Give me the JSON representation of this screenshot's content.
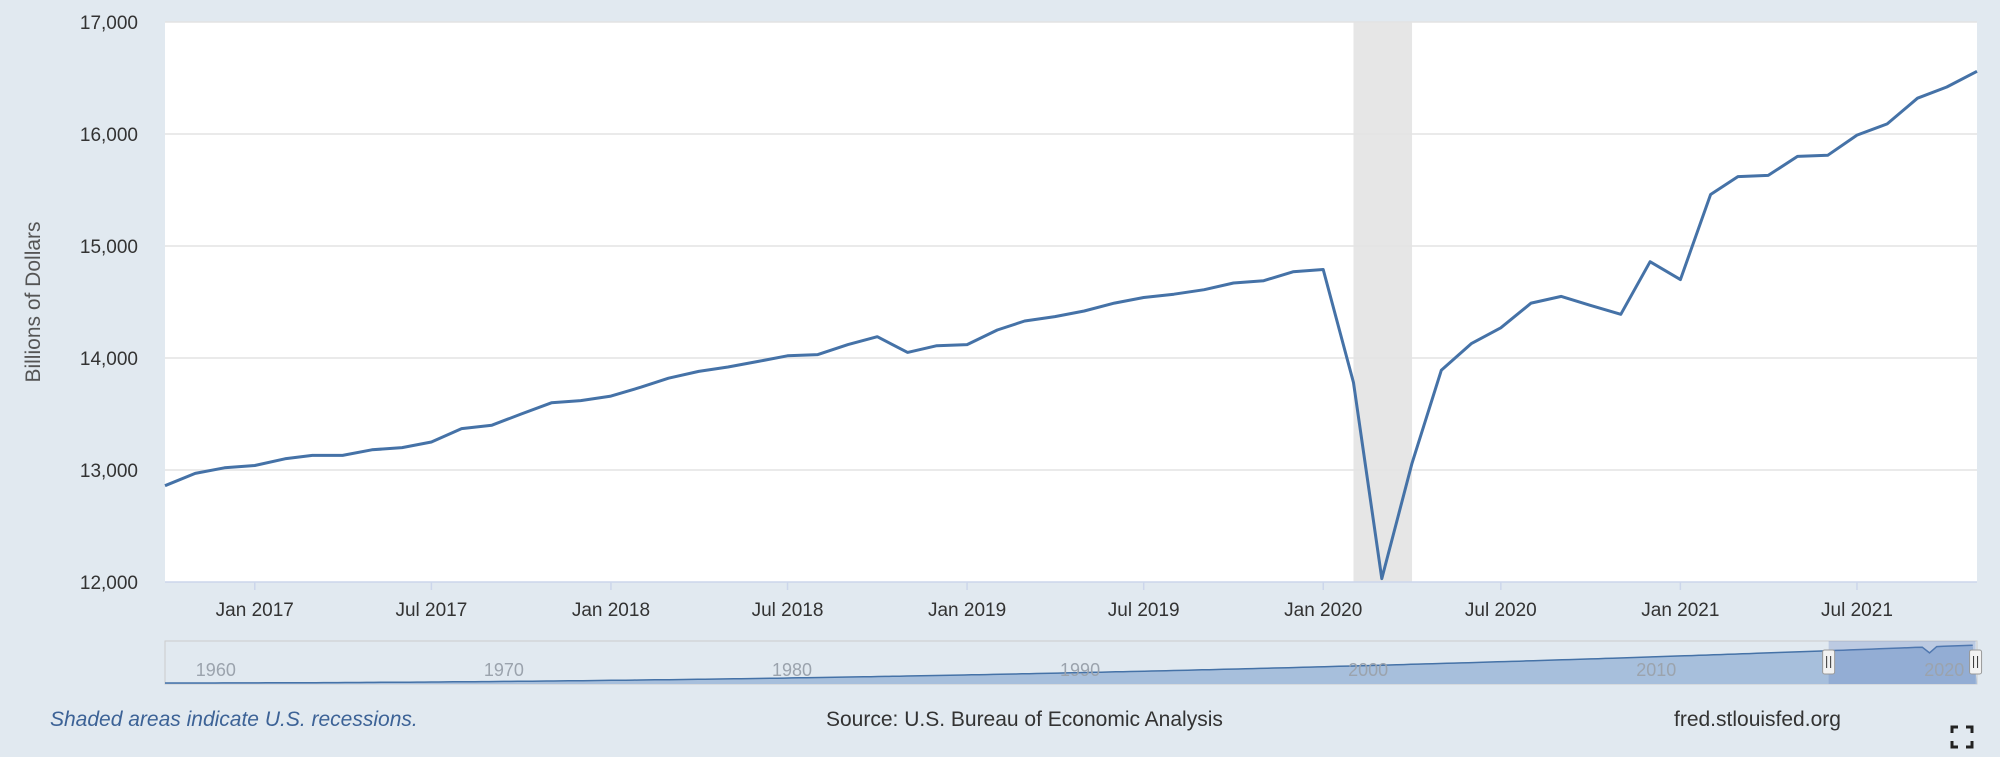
{
  "chart_data": {
    "type": "line",
    "ylabel": "Billions of Dollars",
    "ylim": [
      12000,
      17000
    ],
    "yticks": [
      12000,
      13000,
      14000,
      15000,
      16000,
      17000
    ],
    "ytick_labels": [
      "12,000",
      "13,000",
      "14,000",
      "15,000",
      "16,000",
      "17,000"
    ],
    "xlim": [
      "2016-10-01",
      "2021-11-01"
    ],
    "xticks": [
      "2017-01-01",
      "2017-07-01",
      "2018-01-01",
      "2018-07-01",
      "2019-01-01",
      "2019-07-01",
      "2020-01-01",
      "2020-07-01",
      "2021-01-01",
      "2021-07-01"
    ],
    "xtick_labels": [
      "Jan 2017",
      "Jul 2017",
      "Jan 2018",
      "Jul 2018",
      "Jan 2019",
      "Jul 2019",
      "Jan 2020",
      "Jul 2020",
      "Jan 2021",
      "Jul 2021"
    ],
    "recessions": [
      {
        "start": "2020-02-01",
        "end": "2020-04-01"
      }
    ],
    "grid": true,
    "series": [
      {
        "color": "#4572a7",
        "x": [
          "2016-10-01",
          "2016-11-01",
          "2016-12-01",
          "2017-01-01",
          "2017-02-01",
          "2017-03-01",
          "2017-04-01",
          "2017-05-01",
          "2017-06-01",
          "2017-07-01",
          "2017-08-01",
          "2017-09-01",
          "2017-10-01",
          "2017-11-01",
          "2017-12-01",
          "2018-01-01",
          "2018-02-01",
          "2018-03-01",
          "2018-04-01",
          "2018-05-01",
          "2018-06-01",
          "2018-07-01",
          "2018-08-01",
          "2018-09-01",
          "2018-10-01",
          "2018-11-01",
          "2018-12-01",
          "2019-01-01",
          "2019-02-01",
          "2019-03-01",
          "2019-04-01",
          "2019-05-01",
          "2019-06-01",
          "2019-07-01",
          "2019-08-01",
          "2019-09-01",
          "2019-10-01",
          "2019-11-01",
          "2019-12-01",
          "2020-01-01",
          "2020-02-01",
          "2020-03-01",
          "2020-04-01",
          "2020-05-01",
          "2020-06-01",
          "2020-07-01",
          "2020-08-01",
          "2020-09-01",
          "2020-10-01",
          "2020-11-01",
          "2020-12-01",
          "2021-01-01",
          "2021-02-01",
          "2021-03-01",
          "2021-04-01",
          "2021-05-01",
          "2021-06-01",
          "2021-07-01",
          "2021-08-01",
          "2021-09-01",
          "2021-10-01",
          "2021-11-01"
        ],
        "values": [
          12860,
          12970,
          13020,
          13040,
          13100,
          13130,
          13130,
          13180,
          13200,
          13250,
          13370,
          13400,
          13500,
          13600,
          13620,
          13660,
          13740,
          13820,
          13880,
          13920,
          13970,
          14020,
          14030,
          14120,
          14190,
          14050,
          14110,
          14120,
          14250,
          14330,
          14370,
          14420,
          14490,
          14540,
          14570,
          14610,
          14670,
          14690,
          14770,
          14790,
          13780,
          12030,
          13060,
          13890,
          14130,
          14270,
          14490,
          14550,
          14470,
          14390,
          14860,
          14700,
          15460,
          15620,
          15630,
          15800,
          15810,
          15990,
          16090,
          16320,
          16420,
          16560
        ]
      }
    ],
    "navigator": {
      "labels": [
        "1960",
        "1970",
        "1980",
        "1990",
        "2000",
        "2010",
        "2020"
      ],
      "label_years": [
        1960,
        1970,
        1980,
        1990,
        2000,
        2010,
        2020
      ],
      "range_years": [
        1959,
        2021.9
      ],
      "window_years": [
        2016.75,
        2021.85
      ]
    }
  },
  "footer": {
    "recession_note": "Shaded areas indicate U.S. recessions.",
    "source": "Source: U.S. Bureau of Economic Analysis",
    "site": "fred.stlouisfed.org"
  },
  "icons": {
    "fullscreen": "fullscreen-icon"
  }
}
